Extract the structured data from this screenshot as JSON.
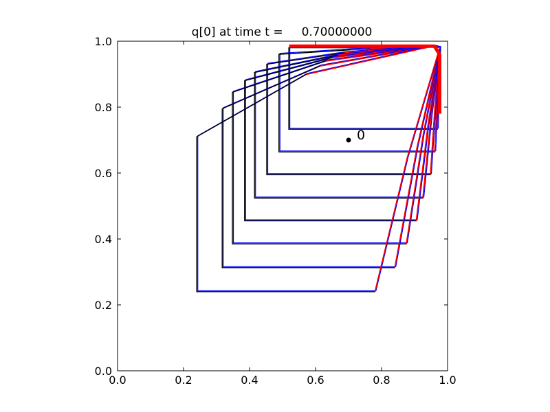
{
  "chart_data": {
    "type": "line",
    "title": "q[0] at time t =     0.70000000",
    "xlabel": "",
    "ylabel": "",
    "xlim": [
      0.0,
      1.0
    ],
    "ylim": [
      0.0,
      1.0
    ],
    "xticks": [
      "0.0",
      "0.2",
      "0.4",
      "0.6",
      "0.8",
      "1.0"
    ],
    "yticks": [
      "0.0",
      "0.2",
      "0.4",
      "0.6",
      "0.8",
      "1.0"
    ],
    "grid": false,
    "legend": "none",
    "colors": {
      "contour": "#000000",
      "refined_patch": "#0000ff",
      "patch_boundary": "#ff0000",
      "axes": "#000000"
    },
    "series": [
      {
        "values": [
          [
            0.519,
            0.98
          ],
          [
            0.519,
            0.733
          ],
          [
            0.969,
            0.733
          ],
          [
            0.976,
            0.98
          ]
        ]
      },
      {
        "values": [
          [
            0.489,
            0.96
          ],
          [
            0.489,
            0.664
          ],
          [
            0.961,
            0.664
          ],
          [
            0.976,
            0.98
          ]
        ]
      },
      {
        "values": [
          [
            0.452,
            0.93
          ],
          [
            0.452,
            0.595
          ],
          [
            0.948,
            0.595
          ],
          [
            0.976,
            0.98
          ]
        ]
      },
      {
        "values": [
          [
            0.415,
            0.905
          ],
          [
            0.415,
            0.524
          ],
          [
            0.925,
            0.524
          ],
          [
            0.976,
            0.98
          ]
        ]
      },
      {
        "values": [
          [
            0.385,
            0.88
          ],
          [
            0.385,
            0.455
          ],
          [
            0.905,
            0.455
          ],
          [
            0.976,
            0.98
          ]
        ]
      },
      {
        "values": [
          [
            0.348,
            0.845
          ],
          [
            0.348,
            0.385
          ],
          [
            0.875,
            0.385
          ],
          [
            0.976,
            0.98
          ]
        ]
      },
      {
        "values": [
          [
            0.317,
            0.795
          ],
          [
            0.317,
            0.313
          ],
          [
            0.84,
            0.313
          ],
          [
            0.976,
            0.98
          ]
        ]
      },
      {
        "values": [
          [
            0.24,
            0.71
          ],
          [
            0.24,
            0.24
          ],
          [
            0.78,
            0.24
          ],
          [
            0.976,
            0.98
          ]
        ]
      }
    ],
    "annotations": [
      {
        "label": "0",
        "x": 0.7,
        "y": 0.7,
        "marker": "dot"
      }
    ]
  }
}
